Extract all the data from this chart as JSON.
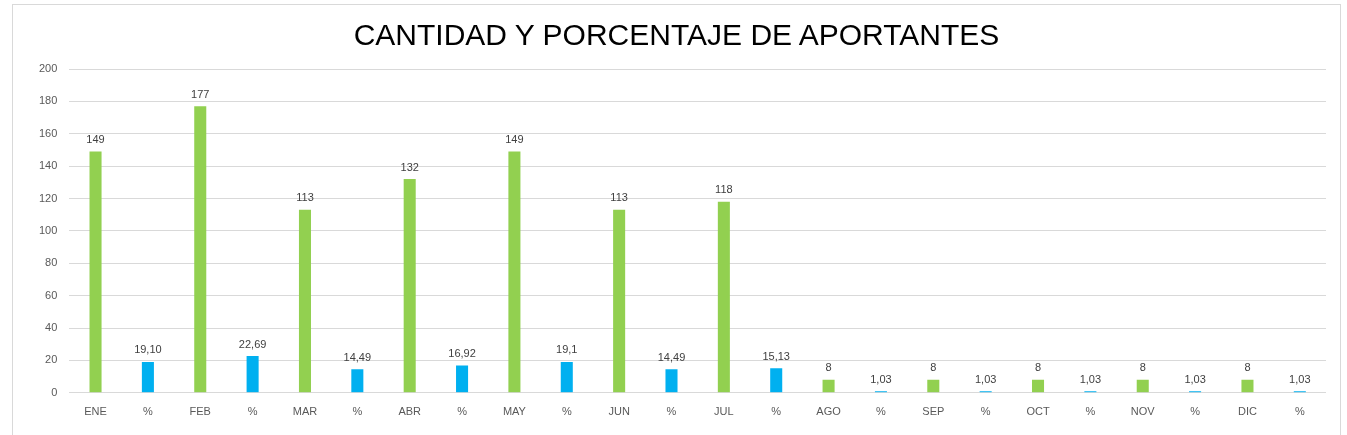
{
  "chart_data": {
    "type": "bar",
    "title": "CANTIDAD Y PORCENTAJE DE APORTANTES",
    "categories": [
      "ENE",
      "%",
      "FEB",
      "%",
      "MAR",
      "%",
      "ABR",
      "%",
      "MAY",
      "%",
      "JUN",
      "%",
      "JUL",
      "%",
      "AGO",
      "%",
      "SEP",
      "%",
      "OCT",
      "%",
      "NOV",
      "%",
      "DIC",
      "%"
    ],
    "values": [
      149,
      19.1,
      177,
      22.69,
      113,
      14.49,
      132,
      16.92,
      149,
      19.1,
      113,
      14.49,
      118,
      15.13,
      8,
      1.03,
      8,
      1.03,
      8,
      1.03,
      8,
      1.03,
      8,
      1.03
    ],
    "colors": [
      "#92d050",
      "#00b0f0",
      "#92d050",
      "#00b0f0",
      "#92d050",
      "#00b0f0",
      "#92d050",
      "#00b0f0",
      "#92d050",
      "#00b0f0",
      "#92d050",
      "#00b0f0",
      "#92d050",
      "#00b0f0",
      "#92d050",
      "#00b0f0",
      "#92d050",
      "#00b0f0",
      "#92d050",
      "#00b0f0",
      "#92d050",
      "#00b0f0",
      "#92d050",
      "#00b0f0"
    ],
    "value_labels": [
      "149",
      "19,10",
      "177",
      "22,69",
      "113",
      "14,49",
      "132",
      "16,92",
      "149",
      "19,1",
      "113",
      "14,49",
      "118",
      "15,13",
      "8",
      "1,03",
      "8",
      "1,03",
      "8",
      "1,03",
      "8",
      "1,03",
      "8",
      "1,03"
    ],
    "ylim": [
      0,
      200
    ],
    "yticks": [
      0,
      20,
      40,
      60,
      80,
      100,
      120,
      140,
      160,
      180,
      200
    ],
    "grid": "y"
  }
}
